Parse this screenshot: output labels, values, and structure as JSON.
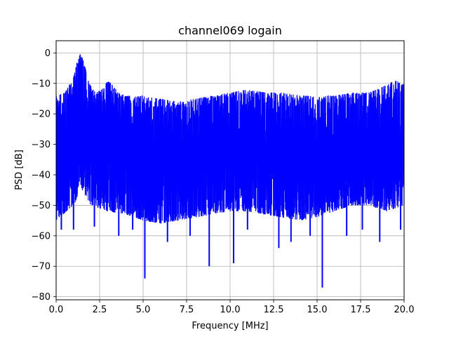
{
  "chart_data": {
    "type": "line",
    "title": "channel069 logain",
    "xlabel": "Frequency [MHz]",
    "ylabel": "PSD [dB]",
    "xlim": [
      0,
      20
    ],
    "ylim": [
      -81,
      4
    ],
    "grid": true,
    "x_ticks": [
      {
        "value": 0,
        "label": "0.0"
      },
      {
        "value": 2.5,
        "label": "2.5"
      },
      {
        "value": 5,
        "label": "5.0"
      },
      {
        "value": 7.5,
        "label": "7.5"
      },
      {
        "value": 10,
        "label": "10.0"
      },
      {
        "value": 12.5,
        "label": "12.5"
      },
      {
        "value": 15,
        "label": "15.0"
      },
      {
        "value": 17.5,
        "label": "17.5"
      },
      {
        "value": 20,
        "label": "20.0"
      }
    ],
    "y_ticks": [
      {
        "value": 0,
        "label": "0"
      },
      {
        "value": -10,
        "label": "−10"
      },
      {
        "value": -20,
        "label": "−20"
      },
      {
        "value": -30,
        "label": "−30"
      },
      {
        "value": -40,
        "label": "−40"
      },
      {
        "value": -50,
        "label": "−50"
      },
      {
        "value": -60,
        "label": "−60"
      },
      {
        "value": -70,
        "label": "−70"
      },
      {
        "value": -80,
        "label": "−80"
      }
    ],
    "series": [
      {
        "color": "#0000ff",
        "upper_envelope": [
          [
            0,
            -14
          ],
          [
            0.5,
            -13
          ],
          [
            1.0,
            -8
          ],
          [
            1.2,
            -3
          ],
          [
            1.4,
            0
          ],
          [
            1.6,
            -3
          ],
          [
            1.8,
            -8
          ],
          [
            2.0,
            -11
          ],
          [
            2.3,
            -13
          ],
          [
            2.6,
            -12
          ],
          [
            3.0,
            -9
          ],
          [
            3.3,
            -11
          ],
          [
            3.6,
            -13
          ],
          [
            4.0,
            -14
          ],
          [
            5.0,
            -14
          ],
          [
            6.0,
            -15
          ],
          [
            7.0,
            -16
          ],
          [
            8.0,
            -15
          ],
          [
            9.0,
            -14
          ],
          [
            10.0,
            -13
          ],
          [
            11.0,
            -12
          ],
          [
            12.0,
            -13
          ],
          [
            13.0,
            -13
          ],
          [
            14.0,
            -14
          ],
          [
            15.0,
            -14
          ],
          [
            16.0,
            -14
          ],
          [
            17.0,
            -13
          ],
          [
            18.0,
            -13
          ],
          [
            18.8,
            -11
          ],
          [
            19.5,
            -9
          ],
          [
            20.0,
            -10
          ]
        ],
        "lower_envelope": [
          [
            0,
            -55
          ],
          [
            1.0,
            -50
          ],
          [
            1.5,
            -45
          ],
          [
            2.0,
            -50
          ],
          [
            3.0,
            -52
          ],
          [
            4.0,
            -53
          ],
          [
            5.0,
            -55
          ],
          [
            6.0,
            -56
          ],
          [
            7.0,
            -55
          ],
          [
            8.0,
            -54
          ],
          [
            9.0,
            -53
          ],
          [
            10.0,
            -52
          ],
          [
            11.0,
            -52
          ],
          [
            12.0,
            -53
          ],
          [
            13.0,
            -54
          ],
          [
            14.0,
            -55
          ],
          [
            15.0,
            -54
          ],
          [
            16.0,
            -52
          ],
          [
            17.0,
            -50
          ],
          [
            18.0,
            -50
          ],
          [
            19.0,
            -52
          ],
          [
            20.0,
            -50
          ]
        ],
        "dips": [
          [
            0.3,
            -58
          ],
          [
            1.0,
            -58
          ],
          [
            2.2,
            -57
          ],
          [
            3.6,
            -60
          ],
          [
            4.4,
            -58
          ],
          [
            5.1,
            -74
          ],
          [
            6.4,
            -62
          ],
          [
            7.7,
            -60
          ],
          [
            8.8,
            -70
          ],
          [
            10.2,
            -69
          ],
          [
            11.0,
            -58
          ],
          [
            12.8,
            -64
          ],
          [
            13.5,
            -62
          ],
          [
            14.6,
            -60
          ],
          [
            15.3,
            -77
          ],
          [
            16.7,
            -60
          ],
          [
            17.6,
            -58
          ],
          [
            18.6,
            -62
          ],
          [
            19.8,
            -58
          ]
        ]
      }
    ]
  }
}
